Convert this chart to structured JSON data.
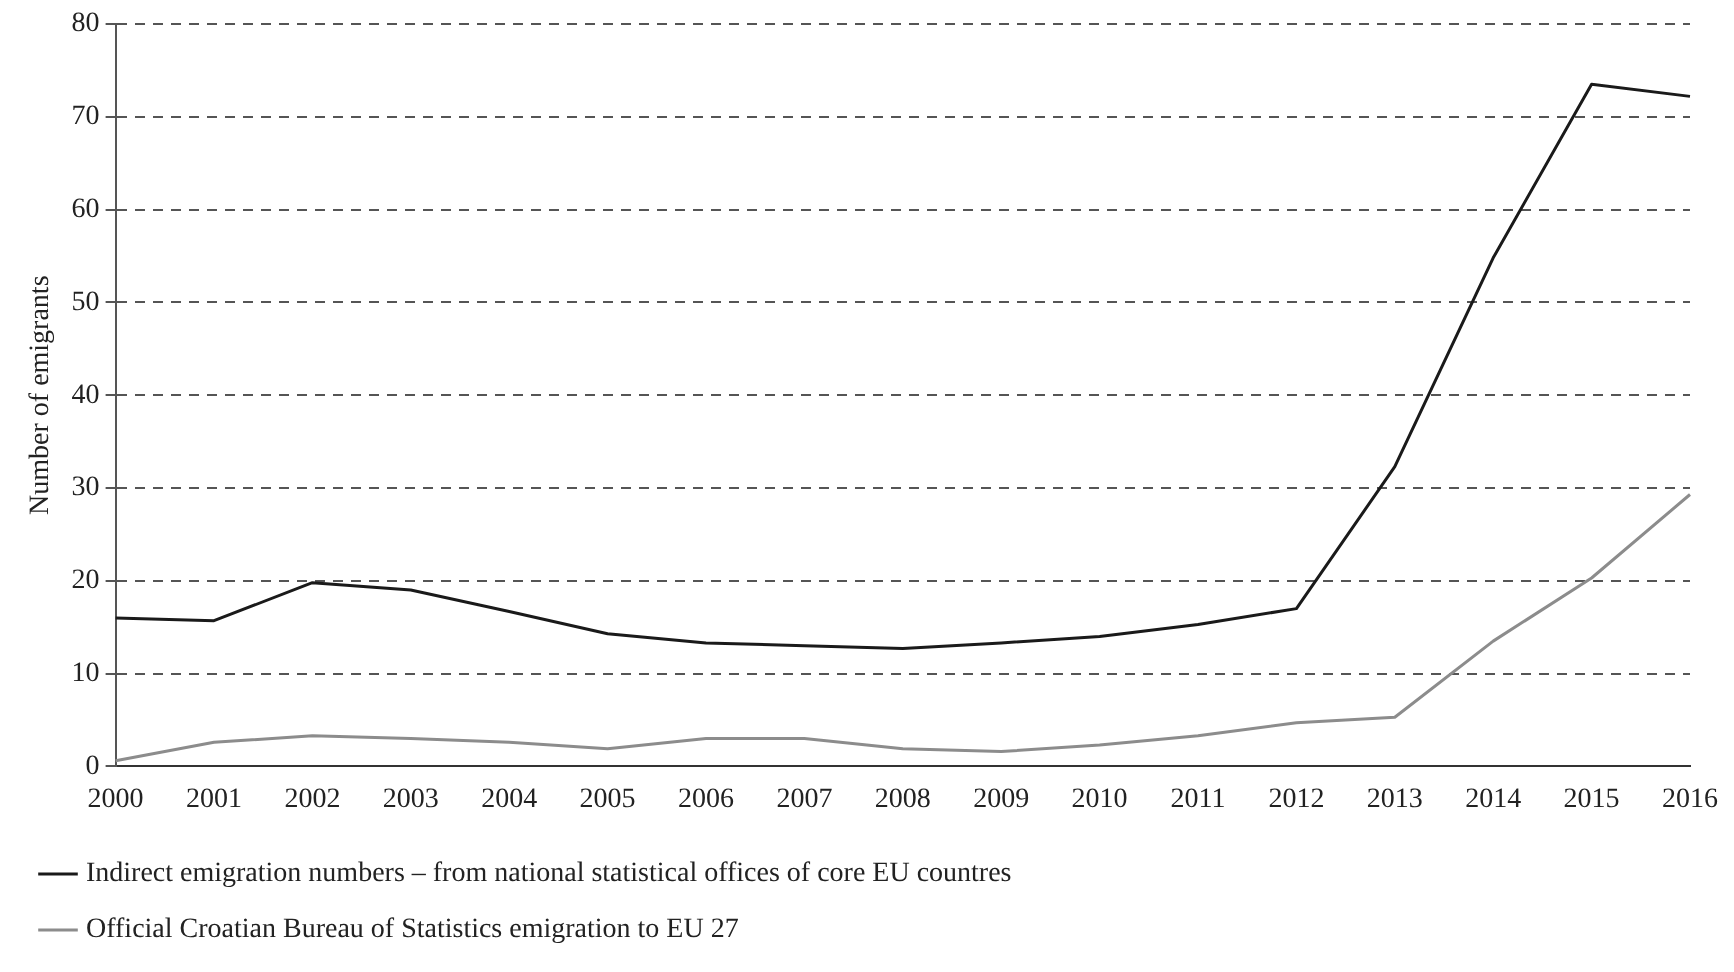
{
  "chart_data": {
    "type": "line",
    "ylabel": "Number of emigrants",
    "categories": [
      "2000",
      "2001",
      "2002",
      "2003",
      "2004",
      "2005",
      "2006",
      "2007",
      "2008",
      "2009",
      "2010",
      "2011",
      "2012",
      "2013",
      "2014",
      "2015",
      "2016"
    ],
    "series": [
      {
        "name": "Indirect emigration numbers – from national statistical offices of core EU countres",
        "color": "#1a1a1a",
        "values": [
          16,
          15.7,
          19.8,
          19,
          16.7,
          14.3,
          13.3,
          13,
          12.7,
          13.3,
          14,
          15.3,
          17,
          32.3,
          54.8,
          73.5,
          72.2
        ]
      },
      {
        "name": "Official Croatian Bureau of Statistics emigration to EU 27",
        "color": "#8c8c8c",
        "values": [
          0.6,
          2.6,
          3.3,
          3,
          2.6,
          1.9,
          3,
          3,
          1.9,
          1.6,
          2.3,
          3.3,
          4.7,
          5.3,
          13.5,
          20.3,
          29.3
        ]
      }
    ],
    "ylim": [
      0,
      80
    ],
    "yticks": [
      0,
      10,
      20,
      30,
      40,
      50,
      60,
      70,
      80
    ],
    "grid": "y",
    "legend": "bottom left",
    "marker": "none",
    "line_style": "solid"
  }
}
